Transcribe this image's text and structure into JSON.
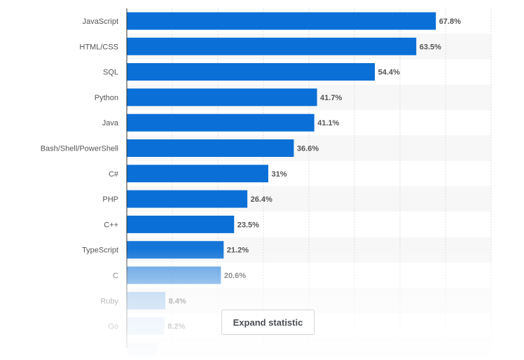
{
  "chart_data": {
    "type": "bar",
    "orientation": "horizontal",
    "categories": [
      "JavaScript",
      "HTML/CSS",
      "SQL",
      "Python",
      "Java",
      "Bash/Shell/PowerShell",
      "C#",
      "PHP",
      "C++",
      "TypeScript",
      "C",
      "Ruby",
      "Go",
      ""
    ],
    "values": [
      67.8,
      63.5,
      54.4,
      41.7,
      41.1,
      36.6,
      31,
      26.4,
      23.5,
      21.2,
      20.6,
      8.4,
      8.2,
      6.5
    ],
    "value_labels": [
      "67.8%",
      "63.5%",
      "54.4%",
      "41.7%",
      "41.1%",
      "36.6%",
      "31%",
      "26.4%",
      "23.5%",
      "21.2%",
      "20.6%",
      "8.4%",
      "8.2%",
      ""
    ],
    "xlim": [
      0,
      80
    ],
    "grid": true,
    "title": "",
    "xlabel": "",
    "ylabel": ""
  },
  "colors": {
    "bar": "#0a6fd6",
    "gridline": "#dedede",
    "band": "#f7f7f7",
    "axis": "#333333",
    "label": "#555555"
  },
  "expand_button": {
    "label": "Expand statistic"
  }
}
